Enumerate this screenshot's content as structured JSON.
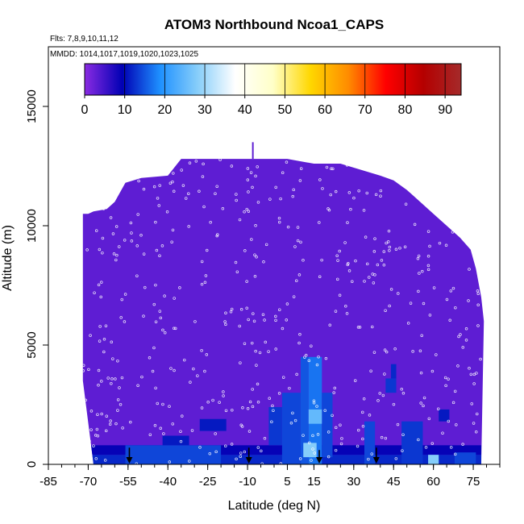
{
  "chart_data": {
    "type": "heatmap",
    "title": "ATOM3 Northbound Ncoa1_CAPS",
    "subtitle_flights": "Flts: 7,8,9,10,11,12",
    "subtitle_dates": "MMDD: 1014,1017,1019,1020,1023,1025",
    "xlabel": "Latitude (deg N)",
    "ylabel": "Altitude (m)",
    "xlim": [
      -85,
      85
    ],
    "ylim": [
      0,
      17500
    ],
    "x_ticks": [
      -85,
      -70,
      -55,
      -40,
      -25,
      -10,
      5,
      15,
      30,
      45,
      60,
      75
    ],
    "x_minor_step": 5,
    "y_ticks": [
      0,
      5000,
      10000,
      15000
    ],
    "colorbar": {
      "range": [
        0,
        94
      ],
      "ticks": [
        0,
        10,
        20,
        30,
        40,
        50,
        60,
        70,
        80,
        90
      ],
      "colors": [
        "#8a2be2",
        "#0000b4",
        "#1e90ff",
        "#87cefa",
        "#ffffff",
        "#ffffc8",
        "#ffd700",
        "#ff8c00",
        "#ff0000",
        "#b40000",
        "#a52a2a"
      ]
    },
    "background_value": 3,
    "envelope": [
      {
        "lat": -72,
        "top": 10500
      },
      {
        "lat": -70,
        "top": 10500
      },
      {
        "lat": -68,
        "top": 10600
      },
      {
        "lat": -63,
        "top": 10700
      },
      {
        "lat": -60,
        "top": 11000
      },
      {
        "lat": -56,
        "top": 11800
      },
      {
        "lat": -50,
        "top": 12000
      },
      {
        "lat": -40,
        "top": 12100
      },
      {
        "lat": -35,
        "top": 12800
      },
      {
        "lat": -20,
        "top": 12800
      },
      {
        "lat": -5,
        "top": 12800
      },
      {
        "lat": 5,
        "top": 12800
      },
      {
        "lat": 15,
        "top": 12600
      },
      {
        "lat": 25,
        "top": 12600
      },
      {
        "lat": 40,
        "top": 12100
      },
      {
        "lat": 45,
        "top": 11900
      },
      {
        "lat": 50,
        "top": 11500
      },
      {
        "lat": 55,
        "top": 11000
      },
      {
        "lat": 60,
        "top": 10500
      },
      {
        "lat": 65,
        "top": 10000
      },
      {
        "lat": 70,
        "top": 9500
      },
      {
        "lat": 74,
        "top": 9000
      },
      {
        "lat": 76,
        "top": 8200
      },
      {
        "lat": 78,
        "top": 7000
      },
      {
        "lat": 79,
        "top": 6000
      }
    ],
    "envelope_bottom_left": -68,
    "envelope_bottom_right": 78,
    "enhanced_cells": [
      {
        "lat": [
          -70,
          78
        ],
        "alt": [
          0,
          400
        ],
        "value": 12
      },
      {
        "lat": [
          -70,
          78
        ],
        "alt": [
          400,
          800
        ],
        "value": 9
      },
      {
        "lat": [
          -56,
          -20
        ],
        "alt": [
          0,
          800
        ],
        "value": 14
      },
      {
        "lat": [
          -42,
          -32
        ],
        "alt": [
          800,
          1200
        ],
        "value": 11
      },
      {
        "lat": [
          -28,
          -18
        ],
        "alt": [
          1400,
          1900
        ],
        "value": 11
      },
      {
        "lat": [
          -2,
          3
        ],
        "alt": [
          800,
          2400
        ],
        "value": 13
      },
      {
        "lat": [
          3,
          10
        ],
        "alt": [
          0,
          3000
        ],
        "value": 14
      },
      {
        "lat": [
          10,
          13
        ],
        "alt": [
          0,
          4500
        ],
        "value": 15
      },
      {
        "lat": [
          13,
          18
        ],
        "alt": [
          0,
          4500
        ],
        "value": 17
      },
      {
        "lat": [
          18,
          22
        ],
        "alt": [
          300,
          3000
        ],
        "value": 14
      },
      {
        "lat": [
          13,
          18
        ],
        "alt": [
          1700,
          2300
        ],
        "value": 25
      },
      {
        "lat": [
          11,
          16
        ],
        "alt": [
          300,
          900
        ],
        "value": 28
      },
      {
        "lat": [
          34,
          38
        ],
        "alt": [
          0,
          1800
        ],
        "value": 14
      },
      {
        "lat": [
          42,
          46
        ],
        "alt": [
          3000,
          3600
        ],
        "value": 13
      },
      {
        "lat": [
          44,
          46
        ],
        "alt": [
          3600,
          4200
        ],
        "value": 12
      },
      {
        "lat": [
          48,
          56
        ],
        "alt": [
          0,
          1800
        ],
        "value": 13
      },
      {
        "lat": [
          58,
          62
        ],
        "alt": [
          0,
          400
        ],
        "value": 28
      },
      {
        "lat": [
          62,
          66
        ],
        "alt": [
          1800,
          2300
        ],
        "value": 11
      },
      {
        "lat": [
          68,
          76
        ],
        "alt": [
          0,
          500
        ],
        "value": 14
      }
    ],
    "arrows": [
      {
        "lat": -54.5,
        "alt": 700
      },
      {
        "lat": -9.5,
        "alt": 700
      },
      {
        "lat": 17,
        "alt": 600
      },
      {
        "lat": 38.5,
        "alt": 700
      }
    ],
    "spike": {
      "lat": -8,
      "alt": [
        12800,
        13500
      ]
    }
  }
}
